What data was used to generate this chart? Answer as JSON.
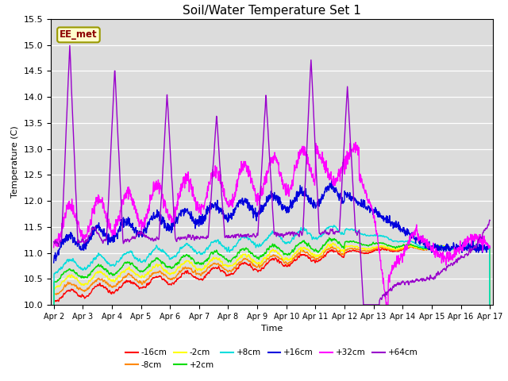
{
  "title": "Soil/Water Temperature Set 1",
  "xlabel": "Time",
  "ylabel": "Temperature (C)",
  "ylim": [
    10.0,
    15.5
  ],
  "annotation": "EE_met",
  "bg_color": "#e0e0e0",
  "series": [
    {
      "label": "-16cm",
      "color": "#ff0000"
    },
    {
      "label": "-8cm",
      "color": "#ff8800"
    },
    {
      "label": "-2cm",
      "color": "#ffff00"
    },
    {
      "label": "+2cm",
      "color": "#00dd00"
    },
    {
      "label": "+8cm",
      "color": "#00dddd"
    },
    {
      "label": "+16cm",
      "color": "#0000dd"
    },
    {
      "label": "+32cm",
      "color": "#ff00ff"
    },
    {
      "label": "+64cm",
      "color": "#9900cc"
    }
  ],
  "xtick_labels": [
    "Apr 2",
    "Apr 3",
    "Apr 4",
    "Apr 5",
    "Apr 6",
    "Apr 7",
    "Apr 8",
    "Apr 9",
    "Apr 10",
    "Apr 11",
    "Apr 12",
    "Apr 13",
    "Apr 14",
    "Apr 15",
    "Apr 16",
    "Apr 17"
  ],
  "yticks": [
    10.0,
    10.5,
    11.0,
    11.5,
    12.0,
    12.5,
    13.0,
    13.5,
    14.0,
    14.5,
    15.0,
    15.5
  ]
}
